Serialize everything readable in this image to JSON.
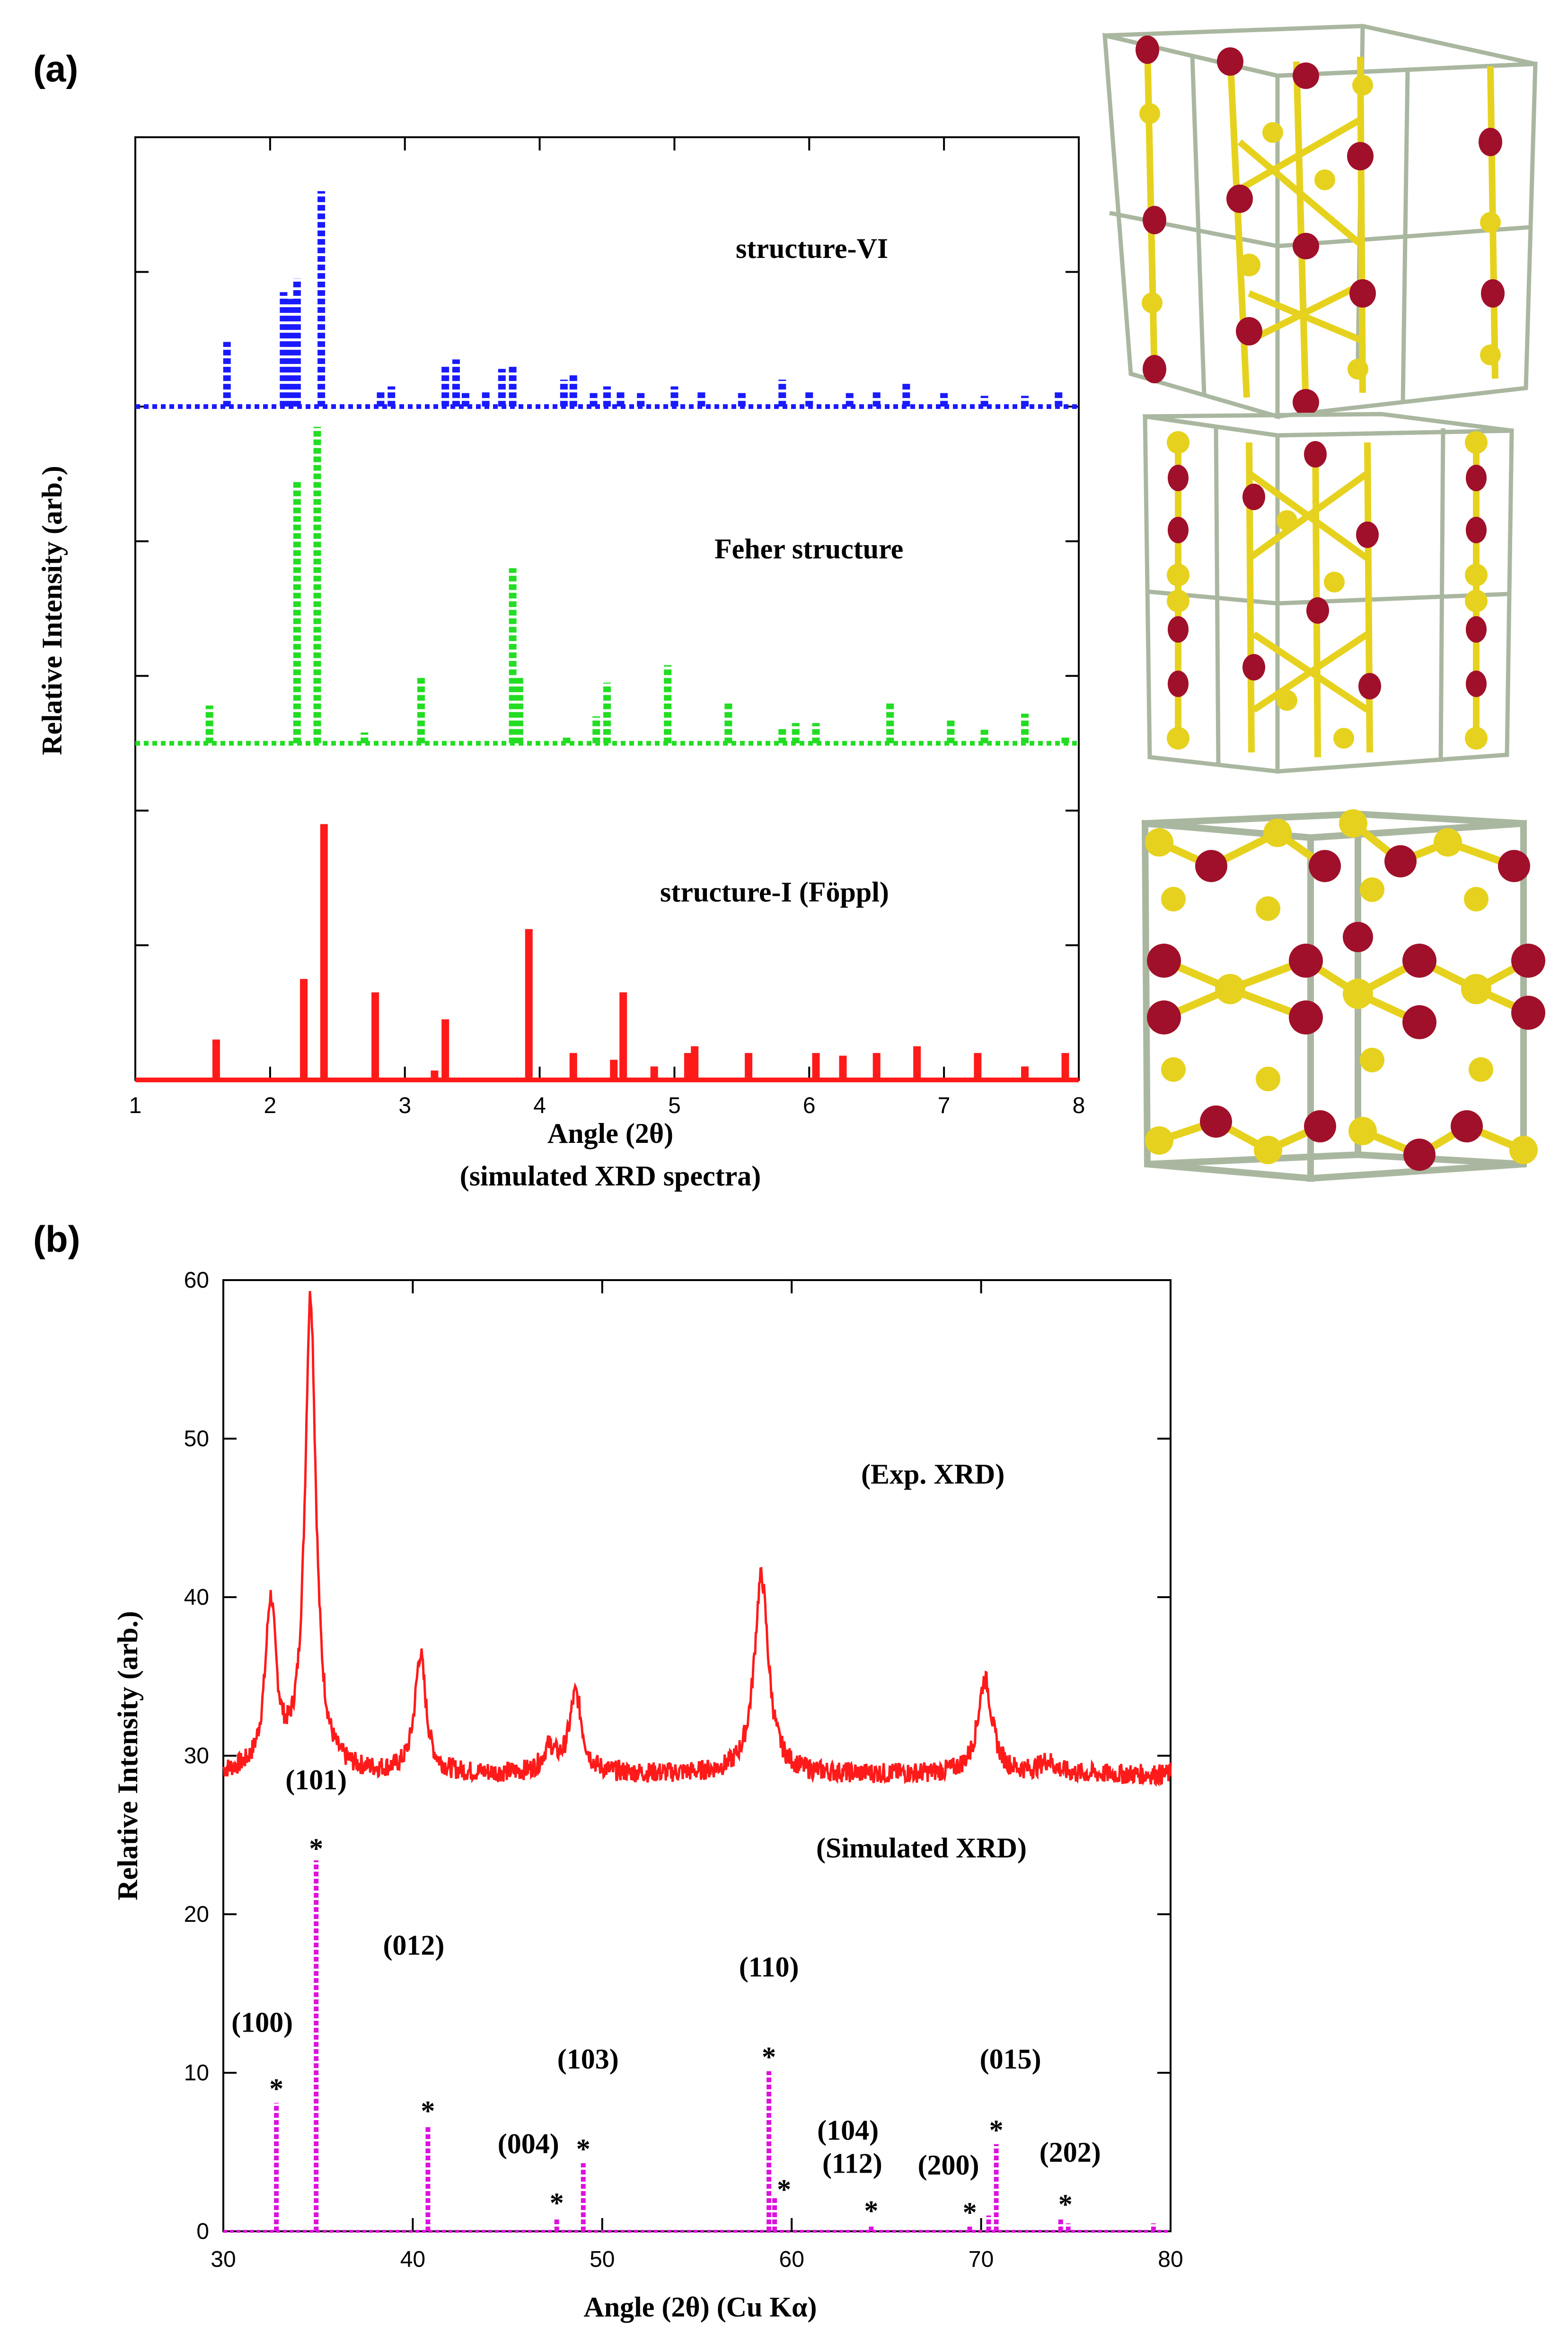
{
  "figure": {
    "panel_a_label": "(a)",
    "panel_b_label": "(b)"
  },
  "chart_data": [
    {
      "type": "bar",
      "id": "a",
      "title": "",
      "xlabel": "Angle (2θ)",
      "xlabel2": "(simulated XRD spectra)",
      "ylabel": "Relative Intensity (arb.)",
      "xlim": [
        1,
        8
      ],
      "xticks": [
        "1",
        "2",
        "3",
        "4",
        "5",
        "6",
        "7",
        "8"
      ],
      "ylim": [
        0,
        7
      ],
      "series": [
        {
          "name": "structure-VI",
          "color": "#1a1aff",
          "label_text": "structure-VI",
          "baseline": 5,
          "peaks": [
            [
              1.68,
              0.48
            ],
            [
              2.1,
              0.85
            ],
            [
              2.15,
              0.8
            ],
            [
              2.2,
              0.95
            ],
            [
              2.38,
              1.6
            ],
            [
              2.82,
              0.12
            ],
            [
              2.9,
              0.15
            ],
            [
              3.3,
              0.3
            ],
            [
              3.38,
              0.35
            ],
            [
              3.45,
              0.1
            ],
            [
              3.6,
              0.12
            ],
            [
              3.72,
              0.28
            ],
            [
              3.8,
              0.3
            ],
            [
              4.18,
              0.2
            ],
            [
              4.25,
              0.25
            ],
            [
              4.4,
              0.1
            ],
            [
              4.5,
              0.15
            ],
            [
              4.6,
              0.12
            ],
            [
              4.75,
              0.1
            ],
            [
              5.0,
              0.15
            ],
            [
              5.2,
              0.12
            ],
            [
              5.5,
              0.1
            ],
            [
              5.8,
              0.2
            ],
            [
              6.0,
              0.12
            ],
            [
              6.3,
              0.1
            ],
            [
              6.5,
              0.12
            ],
            [
              6.72,
              0.18
            ],
            [
              7.0,
              0.1
            ],
            [
              7.3,
              0.08
            ],
            [
              7.6,
              0.08
            ],
            [
              7.85,
              0.12
            ]
          ]
        },
        {
          "name": "Feher structure",
          "color": "#22dd22",
          "label_text": "Feher  structure",
          "baseline": 2.5,
          "peaks": [
            [
              1.55,
              0.28
            ],
            [
              2.2,
              1.95
            ],
            [
              2.35,
              2.35
            ],
            [
              2.7,
              0.08
            ],
            [
              3.12,
              0.5
            ],
            [
              3.8,
              1.3
            ],
            [
              3.85,
              0.5
            ],
            [
              4.2,
              0.05
            ],
            [
              4.42,
              0.2
            ],
            [
              4.5,
              0.45
            ],
            [
              4.95,
              0.58
            ],
            [
              5.4,
              0.3
            ],
            [
              5.8,
              0.12
            ],
            [
              5.9,
              0.15
            ],
            [
              6.05,
              0.15
            ],
            [
              6.6,
              0.3
            ],
            [
              7.05,
              0.18
            ],
            [
              7.3,
              0.1
            ],
            [
              7.6,
              0.22
            ],
            [
              7.9,
              0.05
            ]
          ]
        },
        {
          "name": "structure-I (Föppl)",
          "color": "#ff1a1a",
          "label_text": "structure-I (Föppl)",
          "baseline": 0,
          "peaks": [
            [
              1.6,
              0.3
            ],
            [
              2.25,
              0.75
            ],
            [
              2.4,
              1.9
            ],
            [
              2.78,
              0.65
            ],
            [
              3.22,
              0.07
            ],
            [
              3.3,
              0.45
            ],
            [
              3.92,
              1.12
            ],
            [
              4.25,
              0.2
            ],
            [
              4.55,
              0.15
            ],
            [
              4.62,
              0.65
            ],
            [
              4.85,
              0.1
            ],
            [
              5.1,
              0.2
            ],
            [
              5.15,
              0.25
            ],
            [
              5.55,
              0.2
            ],
            [
              6.05,
              0.2
            ],
            [
              6.25,
              0.18
            ],
            [
              6.5,
              0.2
            ],
            [
              6.8,
              0.25
            ],
            [
              7.25,
              0.2
            ],
            [
              7.6,
              0.1
            ],
            [
              7.9,
              0.2
            ]
          ]
        }
      ]
    },
    {
      "type": "line",
      "id": "b",
      "title": "",
      "xlabel": "Angle (2θ)   (Cu Kα)",
      "ylabel": "Relative Intensity (arb.)",
      "xlim": [
        30,
        80
      ],
      "xticks": [
        "30",
        "40",
        "50",
        "60",
        "70",
        "80"
      ],
      "ylim": [
        0,
        60
      ],
      "yticks": [
        "0",
        "10",
        "20",
        "30",
        "40",
        "50",
        "60"
      ],
      "series": [
        {
          "name": "Exp. XRD",
          "label_text": "(Exp. XRD)",
          "color": "#ff1a1a",
          "baseline": 28.8,
          "peaks": [
            [
              32.5,
              10.5,
              0.35
            ],
            [
              34.6,
              30.0,
              0.35
            ],
            [
              40.4,
              7.5,
              0.35
            ],
            [
              47.2,
              1.5,
              0.4
            ],
            [
              48.6,
              5.0,
              0.4
            ],
            [
              58.4,
              12.5,
              0.45
            ],
            [
              70.2,
              6.0,
              0.45
            ],
            [
              73.5,
              0.8,
              0.5
            ]
          ]
        },
        {
          "name": "Simulated XRD",
          "label_text": "(Simulated XRD)",
          "color": "#dd11dd",
          "baseline": 0,
          "peaks": [
            [
              32.8,
              8.1
            ],
            [
              34.9,
              23.4
            ],
            [
              40.8,
              6.7
            ],
            [
              47.6,
              0.9
            ],
            [
              49.0,
              4.3
            ],
            [
              58.8,
              10.1
            ],
            [
              59.1,
              2.2
            ],
            [
              64.2,
              0.4
            ],
            [
              69.4,
              0.3
            ],
            [
              70.4,
              1.0
            ],
            [
              70.8,
              5.5
            ],
            [
              74.2,
              0.8
            ],
            [
              74.6,
              0.5
            ],
            [
              79.1,
              0.5
            ]
          ],
          "annotations": [
            {
              "hkl": "(100)",
              "x": 32.8,
              "y": 8.1
            },
            {
              "hkl": "(101)",
              "x": 34.9,
              "y": 23.4
            },
            {
              "hkl": "(012)",
              "x": 40.8,
              "y": 6.7
            },
            {
              "hkl": "(004)",
              "x": 47.6,
              "y": 0.9
            },
            {
              "hkl": "(103)",
              "x": 49.0,
              "y": 4.3
            },
            {
              "hkl": "(110)",
              "x": 58.8,
              "y": 10.1
            },
            {
              "hkl": "(104)",
              "x": 59.1,
              "y": 2.2
            },
            {
              "hkl": "(112)",
              "x": 64.2,
              "y": 0.4
            },
            {
              "hkl": "(200)",
              "x": 69.4,
              "y": 0.3
            },
            {
              "hkl": "(015)",
              "x": 70.8,
              "y": 5.5
            },
            {
              "hkl": "(202)",
              "x": 74.2,
              "y": 0.8
            }
          ]
        }
      ]
    }
  ],
  "crystal_structures": {
    "descriptions": [
      "structure-VI",
      "Feher structure",
      "structure-I (Föppl)"
    ],
    "atom_colors": {
      "dark": "#a0102a",
      "light": "#e6d21e",
      "frame": "#aab7a0"
    }
  }
}
